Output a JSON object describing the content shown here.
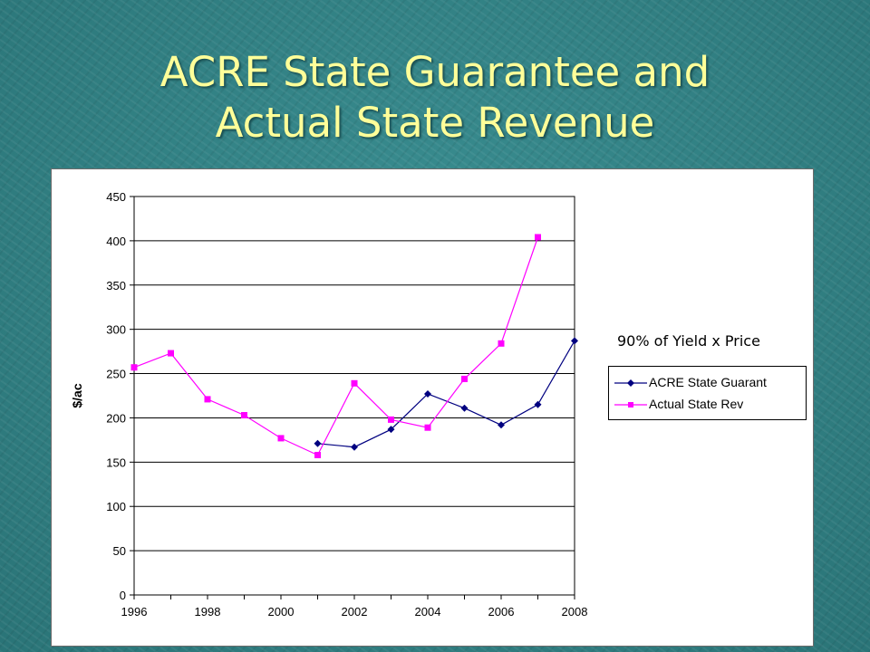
{
  "slide": {
    "title_line1": "ACRE State Guarantee and",
    "title_line2": "Actual State Revenue",
    "annotation": "90% of Yield x Price"
  },
  "chart_data": {
    "type": "line",
    "title": "",
    "xlabel": "",
    "ylabel": "$/ac",
    "xlim": [
      1996,
      2008
    ],
    "ylim": [
      0,
      450
    ],
    "x_ticks": [
      1996,
      1998,
      2000,
      2002,
      2004,
      2006,
      2008
    ],
    "y_ticks": [
      0,
      50,
      100,
      150,
      200,
      250,
      300,
      350,
      400,
      450
    ],
    "grid": "horizontal",
    "legend_position": "right",
    "series": [
      {
        "name": "ACRE State Guarant",
        "color": "#000080",
        "marker": "diamond",
        "x": [
          2001,
          2002,
          2003,
          2004,
          2005,
          2006,
          2007,
          2008
        ],
        "y": [
          171,
          167,
          187,
          227,
          211,
          192,
          215,
          287
        ]
      },
      {
        "name": "Actual State Rev",
        "color": "#ff00ff",
        "marker": "square",
        "x": [
          1996,
          1997,
          1998,
          1999,
          2000,
          2001,
          2002,
          2003,
          2004,
          2005,
          2006,
          2007
        ],
        "y": [
          257,
          273,
          221,
          203,
          177,
          158,
          239,
          198,
          189,
          244,
          284,
          404
        ]
      }
    ]
  }
}
